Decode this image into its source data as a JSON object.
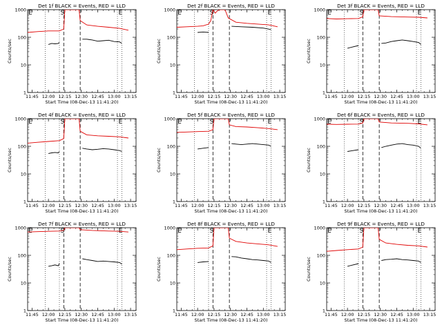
{
  "colors": {
    "events": "#000000",
    "lld": "#e00000",
    "axis": "#000000",
    "background": "#ffffff"
  },
  "shared": {
    "ylabel": "Counts/sec",
    "xlabel": "Start Time (08-Dec-13 11:41:20)",
    "xticks": [
      "11:45",
      "12:00",
      "12:15",
      "12:30",
      "12:45",
      "13:00",
      "13:15"
    ],
    "yticks": [
      "1",
      "10",
      "100",
      "1000"
    ],
    "markers": {
      "E": "E",
      "S": "S"
    }
  },
  "chart_data": [
    {
      "type": "line",
      "title": "Det 1f BLACK = Events, RED = LLD",
      "yscale": "log",
      "ylim": [
        1,
        1000
      ],
      "series": [
        {
          "name": "Events",
          "segments": [
            {
              "x": [
                "12:00",
                "12:03",
                "12:06",
                "12:09",
                "12:10"
              ],
              "y": [
                55,
                60,
                58,
                60,
                65
              ]
            },
            {
              "x": [
                "12:31",
                "12:35",
                "12:40",
                "12:45",
                "12:50",
                "12:55",
                "13:00",
                "13:05",
                "13:07"
              ],
              "y": [
                85,
                85,
                80,
                72,
                75,
                78,
                70,
                68,
                60
              ]
            }
          ]
        },
        {
          "name": "LLD",
          "segments": [
            {
              "x": [
                "11:41",
                "11:50",
                "12:00",
                "12:10",
                "12:14",
                "12:15",
                "12:28",
                "12:29",
                "12:35",
                "12:45",
                "12:55",
                "13:05",
                "13:13"
              ],
              "y": [
                150,
                160,
                170,
                170,
                200,
                1000,
                1000,
                400,
                280,
                250,
                230,
                210,
                180
              ]
            }
          ]
        }
      ]
    },
    {
      "type": "line",
      "title": "Det 2f BLACK = Events, RED = LLD",
      "yscale": "log",
      "ylim": [
        1,
        1000
      ],
      "series": [
        {
          "name": "Events",
          "segments": [
            {
              "x": [
                "12:00",
                "12:05",
                "12:10"
              ],
              "y": [
                150,
                155,
                150
              ]
            },
            {
              "x": [
                "12:31",
                "12:40",
                "12:50",
                "13:00",
                "13:07"
              ],
              "y": [
                250,
                240,
                230,
                215,
                190
              ]
            }
          ]
        },
        {
          "name": "LLD",
          "segments": [
            {
              "x": [
                "11:41",
                "11:50",
                "12:00",
                "12:05",
                "12:10",
                "12:12",
                "12:14",
                "12:16",
                "12:18",
                "12:20",
                "12:25",
                "12:28",
                "12:35",
                "12:45",
                "12:55",
                "13:05",
                "13:13"
              ],
              "y": [
                230,
                240,
                250,
                260,
                300,
                400,
                1000,
                750,
                900,
                1000,
                1000,
                500,
                350,
                320,
                300,
                280,
                240
              ]
            }
          ]
        }
      ]
    },
    {
      "type": "line",
      "title": "Det 3f BLACK = Events, RED = LLD",
      "yscale": "log",
      "ylim": [
        1,
        1000
      ],
      "series": [
        {
          "name": "Events",
          "segments": [
            {
              "x": [
                "12:00",
                "12:05",
                "12:10"
              ],
              "y": [
                40,
                45,
                50
              ]
            },
            {
              "x": [
                "12:31",
                "12:35",
                "12:40",
                "12:45",
                "12:50",
                "12:55",
                "13:00",
                "13:05",
                "13:07"
              ],
              "y": [
                60,
                62,
                70,
                75,
                80,
                75,
                70,
                65,
                55
              ]
            }
          ]
        },
        {
          "name": "LLD",
          "segments": [
            {
              "x": [
                "11:41",
                "11:50",
                "12:00",
                "12:10",
                "12:14",
                "12:15",
                "12:28",
                "12:29",
                "12:40",
                "12:55",
                "13:05",
                "13:13"
              ],
              "y": [
                480,
                460,
                470,
                480,
                550,
                1000,
                1000,
                600,
                560,
                540,
                530,
                500
              ]
            }
          ]
        }
      ]
    },
    {
      "type": "line",
      "title": "Det 4f BLACK = Events, RED = LLD",
      "yscale": "log",
      "ylim": [
        1,
        1000
      ],
      "series": [
        {
          "name": "Events",
          "segments": [
            {
              "x": [
                "12:00",
                "12:03",
                "12:06",
                "12:09",
                "12:10"
              ],
              "y": [
                55,
                58,
                60,
                58,
                65
              ]
            },
            {
              "x": [
                "12:31",
                "12:35",
                "12:40",
                "12:45",
                "12:50",
                "12:55",
                "13:00",
                "13:05",
                "13:07"
              ],
              "y": [
                85,
                80,
                75,
                78,
                82,
                80,
                75,
                70,
                65
              ]
            }
          ]
        },
        {
          "name": "LLD",
          "segments": [
            {
              "x": [
                "11:41",
                "11:50",
                "12:00",
                "12:10",
                "12:14",
                "12:15",
                "12:28",
                "12:29",
                "12:35",
                "12:45",
                "12:55",
                "13:05",
                "13:13"
              ],
              "y": [
                130,
                140,
                150,
                160,
                190,
                1000,
                1000,
                350,
                260,
                240,
                230,
                220,
                200
              ]
            }
          ]
        }
      ]
    },
    {
      "type": "line",
      "title": "Det 5f BLACK = Events, RED = LLD",
      "yscale": "log",
      "ylim": [
        1,
        1000
      ],
      "series": [
        {
          "name": "Events",
          "segments": [
            {
              "x": [
                "12:00",
                "12:05",
                "12:10"
              ],
              "y": [
                80,
                85,
                90
              ]
            },
            {
              "x": [
                "12:31",
                "12:35",
                "12:40",
                "12:45",
                "12:50",
                "12:55",
                "13:00",
                "13:05",
                "13:07"
              ],
              "y": [
                125,
                120,
                115,
                120,
                125,
                120,
                115,
                110,
                100
              ]
            }
          ]
        },
        {
          "name": "LLD",
          "segments": [
            {
              "x": [
                "11:41",
                "11:50",
                "12:00",
                "12:10",
                "12:14",
                "12:15",
                "12:28",
                "12:29",
                "12:35",
                "12:45",
                "12:55",
                "13:05",
                "13:13"
              ],
              "y": [
                320,
                330,
                340,
                350,
                400,
                1000,
                1000,
                600,
                520,
                500,
                470,
                440,
                400
              ]
            }
          ]
        }
      ]
    },
    {
      "type": "line",
      "title": "Det 6f BLACK = Events, RED = LLD",
      "yscale": "log",
      "ylim": [
        1,
        1000
      ],
      "series": [
        {
          "name": "Events",
          "segments": [
            {
              "x": [
                "12:00",
                "12:05",
                "12:10"
              ],
              "y": [
                65,
                70,
                75
              ]
            },
            {
              "x": [
                "12:31",
                "12:35",
                "12:40",
                "12:45",
                "12:50",
                "12:55",
                "13:00",
                "13:05",
                "13:07"
              ],
              "y": [
                90,
                100,
                110,
                120,
                125,
                115,
                110,
                100,
                85
              ]
            }
          ]
        },
        {
          "name": "LLD",
          "segments": [
            {
              "x": [
                "11:41",
                "11:50",
                "12:00",
                "12:10",
                "12:14",
                "12:15",
                "12:28",
                "12:29",
                "12:40",
                "12:55",
                "13:05",
                "13:13"
              ],
              "y": [
                630,
                620,
                630,
                640,
                700,
                1000,
                1000,
                760,
                700,
                680,
                650,
                600
              ]
            }
          ]
        }
      ]
    },
    {
      "type": "line",
      "title": "Det 7f BLACK = Events, RED = LLD",
      "yscale": "log",
      "ylim": [
        1,
        1000
      ],
      "series": [
        {
          "name": "Events",
          "segments": [
            {
              "x": [
                "12:00",
                "12:03",
                "12:06",
                "12:09",
                "12:10"
              ],
              "y": [
                40,
                42,
                45,
                42,
                50
              ]
            },
            {
              "x": [
                "12:31",
                "12:35",
                "12:40",
                "12:45",
                "12:50",
                "12:55",
                "13:00",
                "13:05",
                "13:07"
              ],
              "y": [
                75,
                70,
                65,
                60,
                62,
                60,
                58,
                55,
                48
              ]
            }
          ]
        },
        {
          "name": "LLD",
          "segments": [
            {
              "x": [
                "11:41",
                "11:50",
                "12:00",
                "12:10",
                "12:14",
                "12:15",
                "12:28",
                "12:29",
                "12:40",
                "12:55",
                "13:05",
                "13:13"
              ],
              "y": [
                700,
                720,
                740,
                760,
                800,
                1000,
                1000,
                850,
                800,
                760,
                740,
                700
              ]
            }
          ]
        }
      ]
    },
    {
      "type": "line",
      "title": "Det 8f BLACK = Events, RED = LLD",
      "yscale": "log",
      "ylim": [
        1,
        1000
      ],
      "series": [
        {
          "name": "Events",
          "segments": [
            {
              "x": [
                "12:00",
                "12:05",
                "12:10"
              ],
              "y": [
                55,
                58,
                60
              ]
            },
            {
              "x": [
                "12:31",
                "12:35",
                "12:40",
                "12:45",
                "12:50",
                "12:55",
                "13:00",
                "13:05",
                "13:07"
              ],
              "y": [
                90,
                88,
                80,
                75,
                70,
                68,
                65,
                62,
                55
              ]
            }
          ]
        },
        {
          "name": "LLD",
          "segments": [
            {
              "x": [
                "11:41",
                "11:50",
                "12:00",
                "12:10",
                "12:14",
                "12:15",
                "12:28",
                "12:29",
                "12:35",
                "12:45",
                "12:55",
                "13:05",
                "13:13"
              ],
              "y": [
                160,
                170,
                180,
                185,
                220,
                1000,
                1000,
                420,
                320,
                280,
                260,
                240,
                210
              ]
            }
          ]
        }
      ]
    },
    {
      "type": "line",
      "title": "Det 9f BLACK = Events, RED = LLD",
      "yscale": "log",
      "ylim": [
        1,
        1000
      ],
      "series": [
        {
          "name": "Events",
          "segments": [
            {
              "x": [
                "12:00",
                "12:05",
                "12:10"
              ],
              "y": [
                40,
                45,
                50
              ]
            },
            {
              "x": [
                "12:31",
                "12:35",
                "12:40",
                "12:45",
                "12:50",
                "12:55",
                "13:00",
                "13:05",
                "13:07"
              ],
              "y": [
                65,
                70,
                72,
                75,
                70,
                68,
                65,
                62,
                55
              ]
            }
          ]
        },
        {
          "name": "LLD",
          "segments": [
            {
              "x": [
                "11:41",
                "11:50",
                "12:00",
                "12:10",
                "12:14",
                "12:15",
                "12:28",
                "12:29",
                "12:35",
                "12:45",
                "12:55",
                "13:05",
                "13:13"
              ],
              "y": [
                140,
                150,
                160,
                170,
                200,
                1000,
                1000,
                380,
                280,
                250,
                230,
                220,
                200
              ]
            }
          ]
        }
      ]
    }
  ]
}
